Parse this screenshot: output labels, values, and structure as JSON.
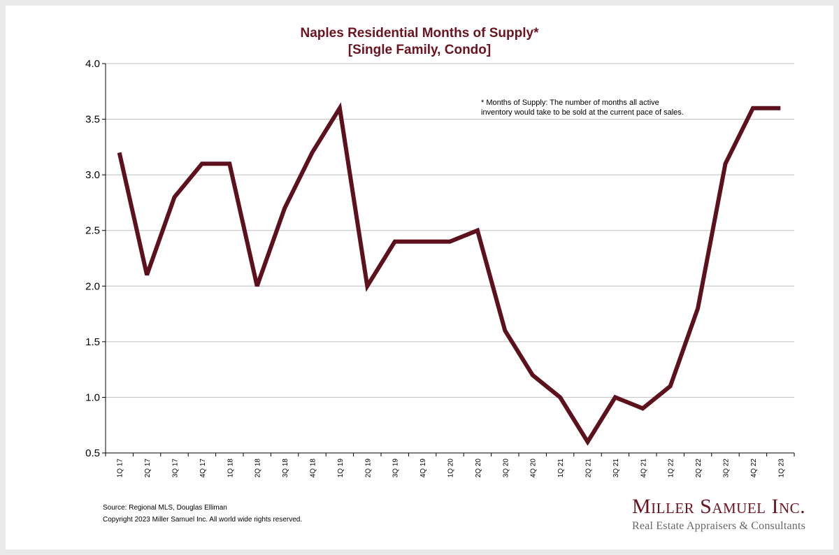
{
  "chart_data": {
    "type": "line",
    "title": "Naples Residential Months of Supply*",
    "subtitle": "[Single Family, Condo]",
    "categories": [
      "1Q 17",
      "2Q 17",
      "3Q 17",
      "4Q 17",
      "1Q 18",
      "2Q 18",
      "3Q 18",
      "4Q 18",
      "1Q 19",
      "2Q 19",
      "3Q 19",
      "4Q 19",
      "1Q 20",
      "2Q 20",
      "3Q 20",
      "4Q 20",
      "1Q 21",
      "2Q 21",
      "3Q 21",
      "4Q 21",
      "1Q 22",
      "2Q 22",
      "3Q 22",
      "4Q 22",
      "1Q 23"
    ],
    "series": [
      {
        "values": [
          3.2,
          2.1,
          2.8,
          3.1,
          3.1,
          2.0,
          2.7,
          3.2,
          3.6,
          2.0,
          2.4,
          2.4,
          2.4,
          2.5,
          1.6,
          1.2,
          1.0,
          0.6,
          1.0,
          0.9,
          1.1,
          1.8,
          3.1,
          3.6,
          3.6
        ],
        "color": "#5c111c"
      }
    ],
    "ylim": [
      0.5,
      4.0
    ],
    "yticks": [
      "0.5",
      "1.0",
      "1.5",
      "2.0",
      "2.5",
      "3.0",
      "3.5",
      "4.0"
    ],
    "xlabel": "",
    "ylabel": "",
    "grid": true,
    "annotation": [
      "* Months of Supply: The number of months all active",
      "inventory would take to be sold at the current pace of sales."
    ]
  },
  "footer": {
    "source": "Source: Regional MLS, Douglas Elliman",
    "copyright": "Copyright 2023 Miller Samuel Inc.  All world wide rights reserved."
  },
  "logo": {
    "name": "Miller Samuel Inc.",
    "tagline": "Real Estate Appraisers & Consultants"
  },
  "colors": {
    "title": "#6b1420",
    "line": "#5c111c",
    "grid": "#bfbfbf",
    "background": "#ffffff",
    "frame": "#e9e9e9"
  }
}
